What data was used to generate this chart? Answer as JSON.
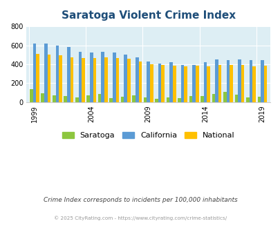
{
  "title": "Saratoga Violent Crime Index",
  "saratoga_vals": [
    140,
    95,
    75,
    65,
    48,
    72,
    85,
    42,
    58,
    72,
    47,
    35,
    52,
    45,
    62,
    68,
    90,
    108,
    80,
    53,
    54
  ],
  "california_vals": [
    620,
    615,
    595,
    580,
    530,
    525,
    530,
    525,
    505,
    475,
    430,
    410,
    420,
    395,
    395,
    425,
    450,
    445,
    450,
    445,
    445
  ],
  "national_vals": [
    510,
    505,
    495,
    470,
    465,
    465,
    470,
    465,
    455,
    430,
    400,
    390,
    385,
    380,
    385,
    375,
    390,
    395,
    395,
    380,
    383
  ],
  "color_saratoga": "#8dc63f",
  "color_california": "#5b9bd5",
  "color_national": "#ffc000",
  "bg_color": "#ddeef4",
  "ylim": [
    0,
    800
  ],
  "yticks": [
    0,
    200,
    400,
    600,
    800
  ],
  "xlabel_years": [
    1999,
    2004,
    2009,
    2014,
    2019
  ],
  "year_start": 1999,
  "num_years": 21,
  "subtitle": "Crime Index corresponds to incidents per 100,000 inhabitants",
  "footer": "© 2025 CityRating.com - https://www.cityrating.com/crime-statistics/",
  "title_color": "#1f4e79",
  "subtitle_color": "#444444",
  "footer_color": "#999999",
  "bar_width": 0.28
}
